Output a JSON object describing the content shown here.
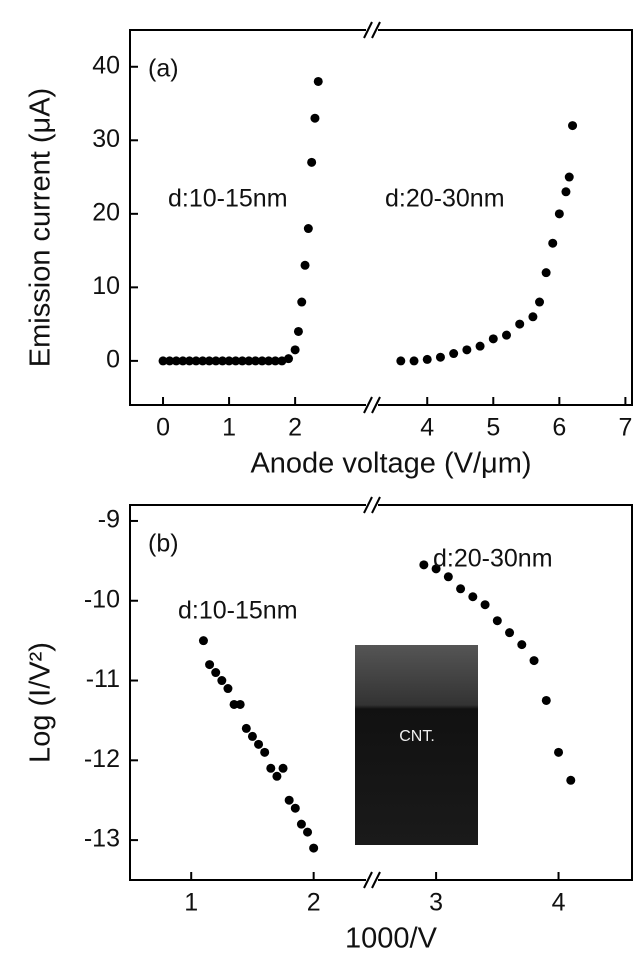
{
  "chart_data": [
    {
      "type": "scatter",
      "xlabel": "Anode voltage (V/μm)",
      "ylabel": "Emission current (μA)",
      "annotations": [
        "(a)",
        "d:10-15nm",
        "d:20-30nm"
      ],
      "xlim": [
        -0.5,
        7.1
      ],
      "ylim": [
        -6,
        45
      ],
      "xticks": [
        0,
        1,
        2,
        4,
        5,
        6,
        7
      ],
      "yticks": [
        0,
        10,
        20,
        30,
        40
      ],
      "series": [
        {
          "name": "d:10-15nm",
          "color": "#000000",
          "x": [
            0,
            0.1,
            0.2,
            0.3,
            0.4,
            0.5,
            0.6,
            0.7,
            0.8,
            0.9,
            1.0,
            1.1,
            1.2,
            1.3,
            1.4,
            1.5,
            1.6,
            1.7,
            1.8,
            1.9,
            2.0,
            2.05,
            2.1,
            2.15,
            2.2,
            2.25,
            2.3,
            2.35
          ],
          "values": [
            0,
            0,
            0,
            0,
            0,
            0,
            0,
            0,
            0,
            0,
            0,
            0,
            0,
            0,
            0,
            0,
            0,
            0,
            0,
            0.3,
            1.5,
            4,
            8,
            13,
            18,
            27,
            33,
            38
          ]
        },
        {
          "name": "d:20-30nm",
          "color": "#000000",
          "x": [
            3.6,
            3.8,
            4.0,
            4.2,
            4.4,
            4.6,
            4.8,
            5.0,
            5.2,
            5.4,
            5.6,
            5.7,
            5.8,
            5.9,
            6.0,
            6.1,
            6.15,
            6.2
          ],
          "values": [
            0,
            0,
            0.2,
            0.5,
            1,
            1.5,
            2,
            3,
            3.5,
            5,
            6,
            8,
            12,
            16,
            20,
            23,
            25,
            32
          ]
        }
      ]
    },
    {
      "type": "scatter",
      "xlabel": "1000/V",
      "ylabel": "Log (I/V²)",
      "annotations": [
        "(b)",
        "d:10-15nm",
        "d:20-30nm",
        "CNT."
      ],
      "xlim": [
        0.5,
        4.6
      ],
      "ylim": [
        -13.5,
        -8.8
      ],
      "xticks": [
        1,
        2,
        3,
        4
      ],
      "yticks": [
        -9,
        -10,
        -11,
        -12,
        -13
      ],
      "series": [
        {
          "name": "d:10-15nm",
          "color": "#000000",
          "x": [
            1.1,
            1.15,
            1.2,
            1.25,
            1.3,
            1.35,
            1.4,
            1.45,
            1.5,
            1.55,
            1.6,
            1.65,
            1.7,
            1.75,
            1.8,
            1.85,
            1.9,
            1.95,
            2.0
          ],
          "values": [
            -10.5,
            -10.8,
            -10.9,
            -11.0,
            -11.1,
            -11.3,
            -11.3,
            -11.6,
            -11.7,
            -11.8,
            -11.9,
            -12.1,
            -12.2,
            -12.1,
            -12.5,
            -12.6,
            -12.8,
            -12.9,
            -13.1
          ]
        },
        {
          "name": "d:20-30nm",
          "color": "#000000",
          "x": [
            2.9,
            3.0,
            3.1,
            3.2,
            3.3,
            3.4,
            3.5,
            3.6,
            3.7,
            3.8,
            3.9,
            4.0,
            4.1
          ],
          "values": [
            -9.55,
            -9.6,
            -9.7,
            -9.85,
            -9.95,
            -10.05,
            -10.25,
            -10.4,
            -10.55,
            -10.75,
            -11.25,
            -11.9,
            -12.25
          ]
        }
      ]
    }
  ]
}
